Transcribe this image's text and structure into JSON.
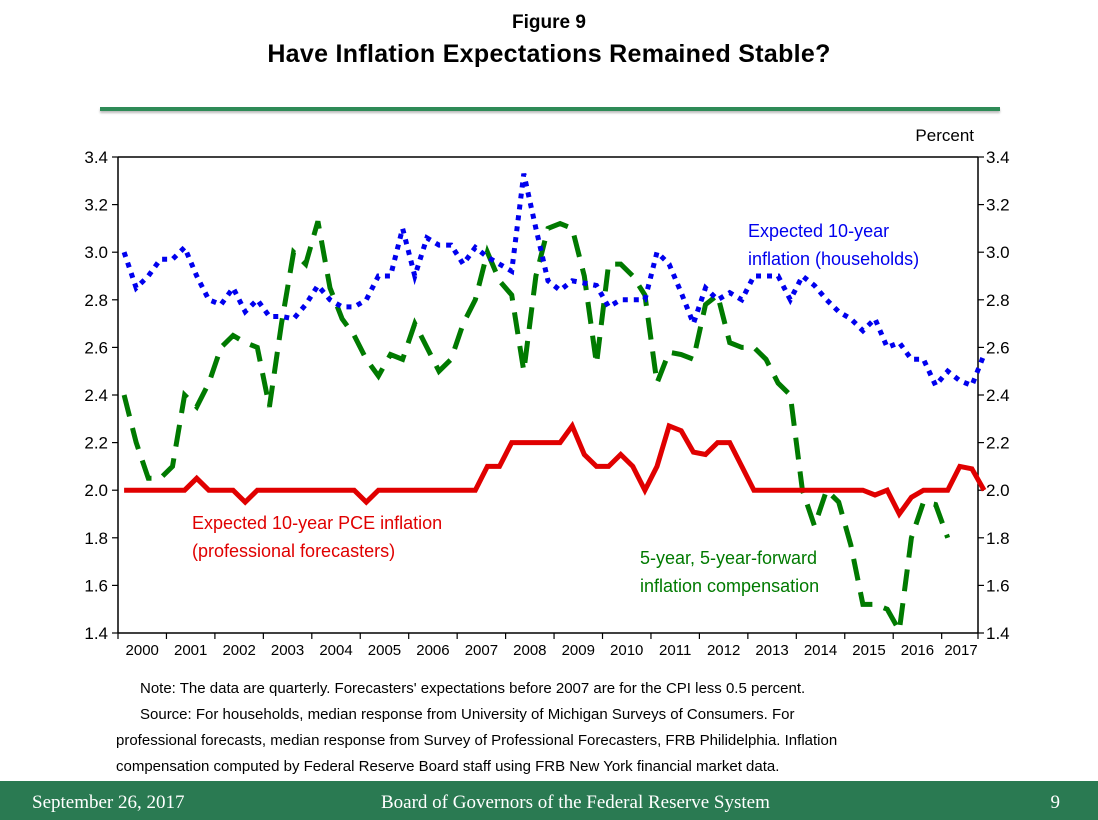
{
  "header": {
    "figure_label": "Figure 9",
    "title": "Have Inflation Expectations Remained Stable?"
  },
  "chart_data": {
    "type": "line",
    "title": "Have Inflation Expectations Remained Stable?",
    "units_label": "Percent",
    "xlabel": "",
    "ylabel": "Percent",
    "ylim": [
      1.4,
      3.4
    ],
    "yticks": [
      "3.4",
      "3.2",
      "3.0",
      "2.8",
      "2.6",
      "2.4",
      "2.2",
      "2.0",
      "1.8",
      "1.6",
      "1.4"
    ],
    "ytick_values": [
      3.4,
      3.2,
      3.0,
      2.8,
      2.6,
      2.4,
      2.2,
      2.0,
      1.8,
      1.6,
      1.4
    ],
    "xlim": [
      2000.0,
      2017.75
    ],
    "year_labels": [
      "2000",
      "2001",
      "2002",
      "2003",
      "2004",
      "2005",
      "2006",
      "2007",
      "2008",
      "2009",
      "2010",
      "2011",
      "2012",
      "2013",
      "2014",
      "2015",
      "2016",
      "2017"
    ],
    "frequency": "quarterly",
    "grid": false,
    "series": [
      {
        "name": "Expected 10-year inflation (households)",
        "label_lines": [
          "Expected 10-year",
          "inflation (households)"
        ],
        "color": "#0000ee",
        "style": "dotted",
        "start": 2000.0,
        "values": [
          3.0,
          2.85,
          2.9,
          2.97,
          2.97,
          3.02,
          2.9,
          2.8,
          2.78,
          2.85,
          2.75,
          2.8,
          2.73,
          2.73,
          2.72,
          2.78,
          2.86,
          2.8,
          2.77,
          2.77,
          2.8,
          2.9,
          2.9,
          3.1,
          2.9,
          3.06,
          3.03,
          3.03,
          2.95,
          3.02,
          2.98,
          2.95,
          2.92,
          3.33,
          3.1,
          2.88,
          2.84,
          2.88,
          2.87,
          2.86,
          2.77,
          2.8,
          2.8,
          2.8,
          3.0,
          2.95,
          2.83,
          2.7,
          2.85,
          2.8,
          2.83,
          2.8,
          2.9,
          2.9,
          2.9,
          2.8,
          2.9,
          2.86,
          2.8,
          2.75,
          2.72,
          2.67,
          2.72,
          2.6,
          2.62,
          2.55,
          2.55,
          2.44,
          2.5,
          2.46,
          2.44,
          2.57
        ]
      },
      {
        "name": "Expected 10-year PCE inflation (professional forecasters)",
        "label_lines": [
          "Expected 10-year PCE inflation",
          "(professional forecasters)"
        ],
        "color": "#e00000",
        "style": "solid",
        "start": 2000.0,
        "values": [
          2.0,
          2.0,
          2.0,
          2.0,
          2.0,
          2.0,
          2.05,
          2.0,
          2.0,
          2.0,
          1.95,
          2.0,
          2.0,
          2.0,
          2.0,
          2.0,
          2.0,
          2.0,
          2.0,
          2.0,
          1.95,
          2.0,
          2.0,
          2.0,
          2.0,
          2.0,
          2.0,
          2.0,
          2.0,
          2.0,
          2.1,
          2.1,
          2.2,
          2.2,
          2.2,
          2.2,
          2.2,
          2.27,
          2.15,
          2.1,
          2.1,
          2.15,
          2.1,
          2.0,
          2.1,
          2.27,
          2.25,
          2.16,
          2.15,
          2.2,
          2.2,
          2.1,
          2.0,
          2.0,
          2.0,
          2.0,
          2.0,
          2.0,
          2.0,
          2.0,
          2.0,
          2.0,
          1.98,
          2.0,
          1.9,
          1.97,
          2.0,
          2.0,
          2.0,
          2.1,
          2.09,
          2.0
        ]
      },
      {
        "name": "5-year, 5-year-forward inflation compensation",
        "label_lines": [
          "5-year, 5-year-forward",
          "inflation compensation"
        ],
        "color": "#007a00",
        "style": "dashed",
        "start": 2000.0,
        "values": [
          2.4,
          2.2,
          2.05,
          2.05,
          2.1,
          2.4,
          2.35,
          2.45,
          2.6,
          2.65,
          2.62,
          2.6,
          2.35,
          2.7,
          3.0,
          2.95,
          3.13,
          2.85,
          2.72,
          2.65,
          2.55,
          2.48,
          2.57,
          2.55,
          2.7,
          2.6,
          2.5,
          2.55,
          2.7,
          2.8,
          3.0,
          2.88,
          2.82,
          2.5,
          2.9,
          3.1,
          3.12,
          3.1,
          2.9,
          2.53,
          2.95,
          2.95,
          2.9,
          2.82,
          2.45,
          2.58,
          2.57,
          2.55,
          2.78,
          2.82,
          2.62,
          2.6,
          2.6,
          2.55,
          2.45,
          2.4,
          2.0,
          1.85,
          2.0,
          1.95,
          1.77,
          1.52,
          1.52,
          1.5,
          1.41,
          1.8,
          1.95,
          1.94,
          1.8
        ]
      }
    ]
  },
  "notes": {
    "line1": "Note: The data are quarterly. Forecasters' expectations before 2007 are for the CPI less 0.5 percent.",
    "line2": "Source: For households, median response from University of Michigan Surveys of Consumers. For",
    "line3": "professional forecasts, median response from Survey of Professional Forecasters, FRB Philidelphia.  Inflation",
    "line4": "compensation computed by Federal Reserve Board staff using FRB New York financial market data."
  },
  "footer": {
    "date": "September 26, 2017",
    "organization": "Board of Governors of the Federal Reserve System",
    "page_number": "9"
  }
}
